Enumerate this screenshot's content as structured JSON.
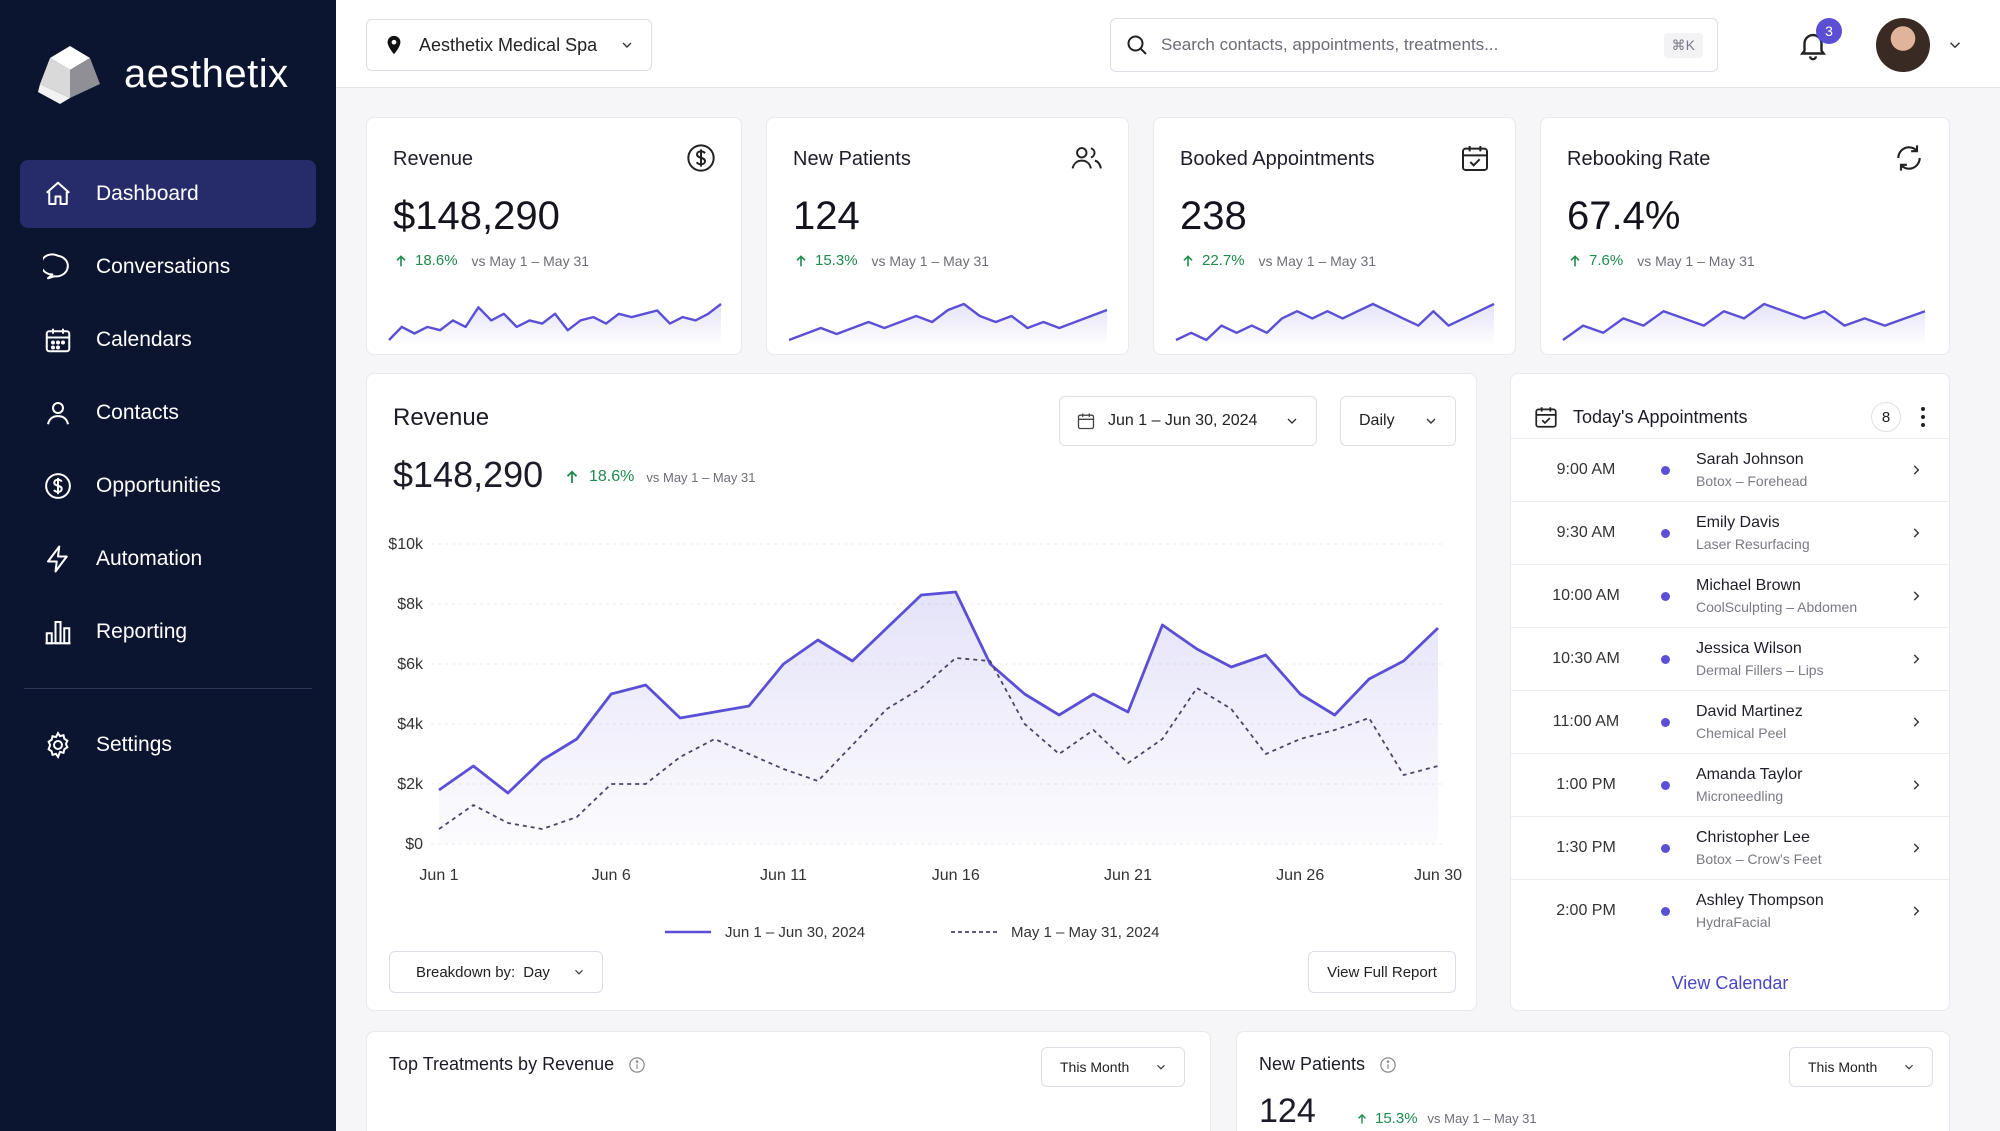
{
  "brand": {
    "name": "aesthetix"
  },
  "nav": [
    {
      "label": "Dashboard",
      "icon": "home-icon",
      "active": true
    },
    {
      "label": "Conversations",
      "icon": "chat-bubble-icon"
    },
    {
      "label": "Calendars",
      "icon": "calendar-icon"
    },
    {
      "label": "Contacts",
      "icon": "person-icon"
    },
    {
      "label": "Opportunities",
      "icon": "dollar-circle-icon"
    },
    {
      "label": "Automation",
      "icon": "lightning-icon"
    },
    {
      "label": "Reporting",
      "icon": "bar-chart-icon"
    }
  ],
  "settings": {
    "label": "Settings",
    "icon": "gear-icon"
  },
  "topbar": {
    "location": "Aesthetix Medical Spa",
    "search_placeholder": "Search contacts, appointments, treatments...",
    "search_shortcut": "⌘K",
    "notifications": "3"
  },
  "kpis": [
    {
      "title": "Revenue",
      "icon": "dollar-circle-icon",
      "value": "$148,290",
      "delta": "18.6%",
      "compare": "vs May 1 – May 31",
      "spark": [
        3,
        5,
        4,
        5,
        4.5,
        6,
        5,
        8,
        6,
        7,
        5,
        6,
        5.5,
        7,
        4.5,
        6,
        6.5,
        5.5,
        7,
        6.5,
        7,
        7.5,
        5.5,
        6.5,
        6,
        7,
        8.5
      ]
    },
    {
      "title": "New Patients",
      "icon": "people-icon",
      "value": "124",
      "delta": "15.3%",
      "compare": "vs May 1 – May 31",
      "spark": [
        3,
        4,
        5,
        4,
        5,
        6,
        5,
        6,
        7,
        6,
        8,
        9,
        7,
        6,
        7,
        5,
        6,
        5,
        6,
        7,
        8
      ]
    },
    {
      "title": "Booked Appointments",
      "icon": "calendar-check-icon",
      "value": "238",
      "delta": "22.7%",
      "compare": "vs May 1 – May 31",
      "spark": [
        3,
        4,
        3,
        5,
        4,
        5,
        4,
        6,
        7,
        6,
        7,
        6,
        7,
        8,
        7,
        6,
        5,
        7,
        5,
        6,
        7,
        8
      ]
    },
    {
      "title": "Rebooking Rate",
      "icon": "refresh-icon",
      "value": "67.4%",
      "delta": "7.6%",
      "compare": "vs May 1 – May 31",
      "spark": [
        3,
        5,
        4,
        6,
        5,
        7,
        6,
        5,
        7,
        6,
        8,
        7,
        6,
        7,
        5,
        6,
        5,
        6,
        7
      ]
    }
  ],
  "revenue_card": {
    "title": "Revenue",
    "value": "$148,290",
    "delta": "18.6%",
    "compare": "vs May 1 – May 31",
    "date_range": "Jun 1 – Jun 30, 2024",
    "granularity": "Daily",
    "breakdown_label": "Breakdown by:",
    "breakdown_value": "Day",
    "view_report": "View Full Report"
  },
  "chart_data": {
    "type": "line",
    "title": "Revenue",
    "x": [
      "Jun 1",
      "Jun 2",
      "Jun 3",
      "Jun 4",
      "Jun 5",
      "Jun 6",
      "Jun 7",
      "Jun 8",
      "Jun 9",
      "Jun 10",
      "Jun 11",
      "Jun 12",
      "Jun 13",
      "Jun 14",
      "Jun 15",
      "Jun 16",
      "Jun 17",
      "Jun 18",
      "Jun 19",
      "Jun 20",
      "Jun 21",
      "Jun 22",
      "Jun 23",
      "Jun 24",
      "Jun 25",
      "Jun 26",
      "Jun 27",
      "Jun 28",
      "Jun 29",
      "Jun 30"
    ],
    "x_ticks": [
      "Jun 1",
      "Jun 6",
      "Jun 11",
      "Jun 16",
      "Jun 21",
      "Jun 26",
      "Jun 30"
    ],
    "y_ticks": [
      "$0",
      "$2k",
      "$4k",
      "$6k",
      "$8k",
      "$10k"
    ],
    "ylim": [
      0,
      10000
    ],
    "series": [
      {
        "name": "Jun 1 – Jun 30, 2024",
        "style": "solid",
        "color": "#5b4fd6",
        "values": [
          1800,
          2600,
          1700,
          2800,
          3500,
          5000,
          5300,
          4200,
          4400,
          4600,
          6000,
          6800,
          6100,
          7200,
          8300,
          8400,
          6000,
          5000,
          4300,
          5000,
          4400,
          7300,
          6500,
          5900,
          6300,
          5000,
          4300,
          5500,
          6100,
          7200
        ]
      },
      {
        "name": "May 1 – May 31, 2024",
        "style": "dashed",
        "color": "#4a4466",
        "values": [
          500,
          1300,
          700,
          500,
          900,
          2000,
          2000,
          2900,
          3500,
          3000,
          2500,
          2100,
          3300,
          4500,
          5200,
          6200,
          6100,
          4000,
          3000,
          3800,
          2700,
          3500,
          5200,
          4500,
          3000,
          3500,
          3800,
          4200,
          2300,
          2600
        ]
      }
    ]
  },
  "appointments": {
    "title": "Today's Appointments",
    "count": "8",
    "items": [
      {
        "time": "9:00 AM",
        "name": "Sarah Johnson",
        "service": "Botox – Forehead"
      },
      {
        "time": "9:30 AM",
        "name": "Emily Davis",
        "service": "Laser Resurfacing"
      },
      {
        "time": "10:00 AM",
        "name": "Michael Brown",
        "service": "CoolSculpting – Abdomen"
      },
      {
        "time": "10:30 AM",
        "name": "Jessica Wilson",
        "service": "Dermal Fillers – Lips"
      },
      {
        "time": "11:00 AM",
        "name": "David Martinez",
        "service": "Chemical Peel"
      },
      {
        "time": "1:00 PM",
        "name": "Amanda Taylor",
        "service": "Microneedling"
      },
      {
        "time": "1:30 PM",
        "name": "Christopher Lee",
        "service": "Botox – Crow's Feet"
      },
      {
        "time": "2:00 PM",
        "name": "Ashley Thompson",
        "service": "HydraFacial"
      }
    ],
    "view_calendar": "View Calendar"
  },
  "bottom": {
    "treatments": {
      "title": "Top Treatments by Revenue",
      "period": "This Month"
    },
    "new_patients": {
      "title": "New Patients",
      "period": "This Month",
      "value": "124",
      "delta": "15.3%",
      "compare": "vs May 1 – May 31"
    }
  },
  "colors": {
    "sidebar": "#0b1530",
    "active": "#262c6a",
    "accent": "#5b4fd6",
    "positive": "#1f8a4c"
  }
}
